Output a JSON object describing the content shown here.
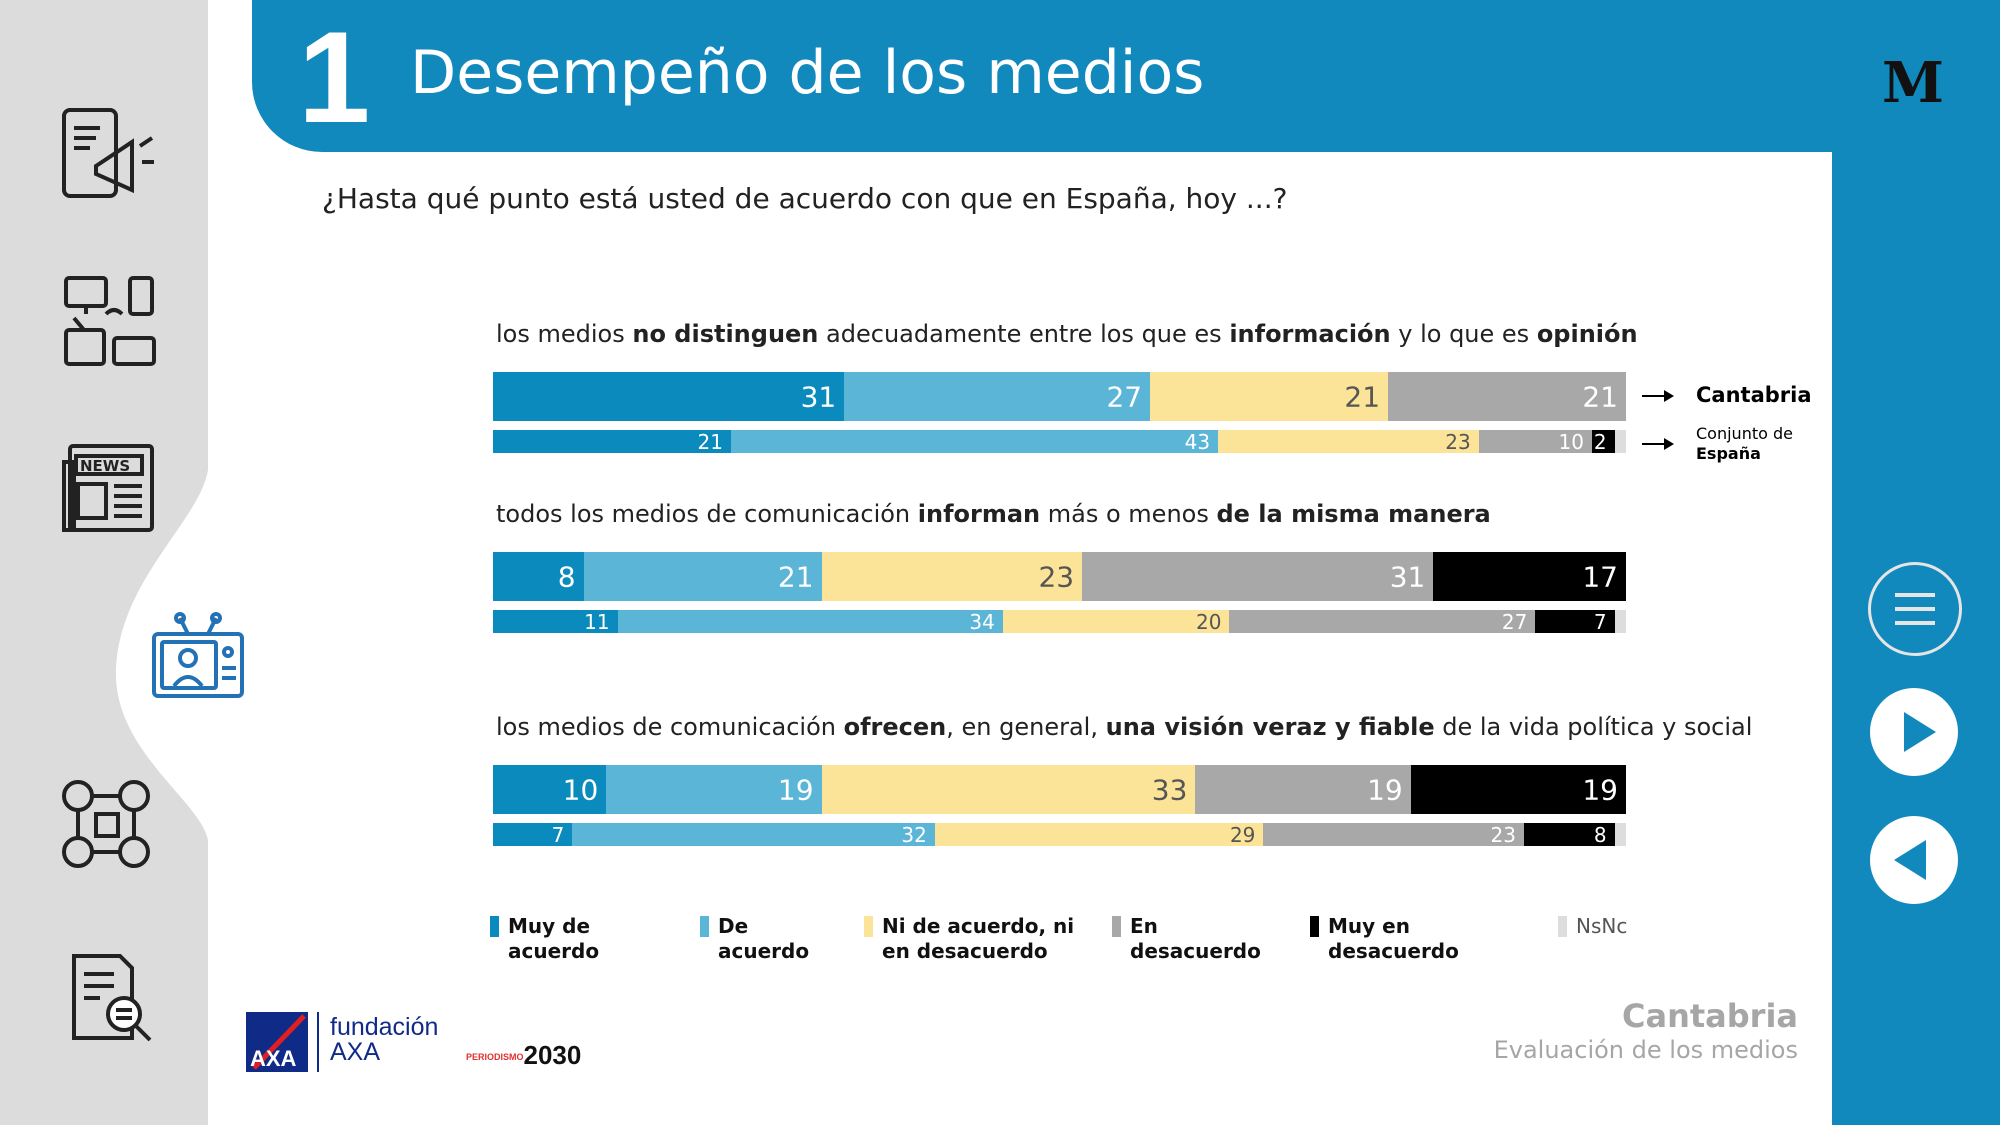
{
  "header": {
    "number": "1",
    "title": "Desempeño de los medios"
  },
  "question": "¿Hasta qué punto está usted de acuerdo con que en España, hoy ...?",
  "row_labels": {
    "main": "Cantabria",
    "sub_line1": "Conjunto de",
    "sub_line2": "España"
  },
  "colors": {
    "muy_de_acuerdo": "#0b8bbd",
    "de_acuerdo": "#5bb5d7",
    "ni": "#fbe398",
    "en_desacuerdo": "#a8a8a8",
    "muy_en_desacuerdo": "#000000",
    "nsnc": "#dddddd",
    "header_blue": "#1189bd"
  },
  "legend": [
    {
      "label": "Muy de acuerdo"
    },
    {
      "label": "De acuerdo"
    },
    {
      "label": "Ni de acuerdo, ni en desacuerdo"
    },
    {
      "label": "En desacuerdo"
    },
    {
      "label": "Muy en desacuerdo"
    },
    {
      "label": "NsNc"
    }
  ],
  "chart_data": {
    "type": "bar",
    "orientation": "horizontal",
    "stacked": true,
    "categories": [
      "Muy de acuerdo",
      "De acuerdo",
      "Ni de acuerdo, ni en desacuerdo",
      "En desacuerdo",
      "Muy en desacuerdo",
      "NsNc"
    ],
    "groups": [
      {
        "label_parts": [
          {
            "text": "los medios ",
            "bold": false
          },
          {
            "text": "no distinguen",
            "bold": true
          },
          {
            "text": " adecuadamente entre los que es ",
            "bold": false
          },
          {
            "text": "información",
            "bold": true
          },
          {
            "text": " y lo que es ",
            "bold": false
          },
          {
            "text": "opinión",
            "bold": true
          }
        ],
        "cantabria": [
          31,
          27,
          21,
          21,
          0,
          0
        ],
        "espana": [
          21,
          43,
          23,
          10,
          2,
          1
        ]
      },
      {
        "label_parts": [
          {
            "text": "todos los medios de comunicación ",
            "bold": false
          },
          {
            "text": "informan",
            "bold": true
          },
          {
            "text": " más o menos ",
            "bold": false
          },
          {
            "text": "de la misma manera",
            "bold": true
          }
        ],
        "cantabria": [
          8,
          21,
          23,
          31,
          17,
          0
        ],
        "espana": [
          11,
          34,
          20,
          27,
          7,
          1
        ]
      },
      {
        "label_parts": [
          {
            "text": "los medios de comunicación ",
            "bold": false
          },
          {
            "text": "ofrecen",
            "bold": true
          },
          {
            "text": ", en general, ",
            "bold": false
          },
          {
            "text": "una visión veraz y fiable",
            "bold": true
          },
          {
            "text": " de la vida política y social",
            "bold": false
          }
        ],
        "cantabria": [
          10,
          19,
          33,
          19,
          19,
          0
        ],
        "espana": [
          7,
          32,
          29,
          23,
          8,
          1
        ]
      }
    ]
  },
  "footer": {
    "region": "Cantabria",
    "subtitle": "Evaluación de los medios",
    "fundacion_line1": "fundación",
    "fundacion_line2": "AXA",
    "axa": "AXA",
    "periodismo_small": "PERIODISMO",
    "periodismo_year": "2030",
    "m_logo": "M"
  }
}
